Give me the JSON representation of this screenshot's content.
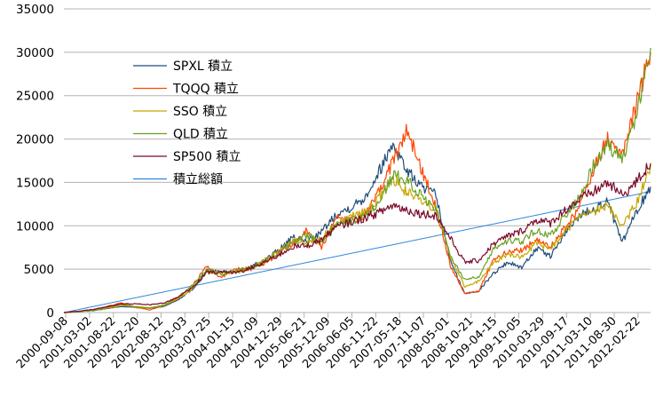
{
  "chart_data": {
    "type": "line",
    "title": "",
    "xlabel": "",
    "ylabel": "",
    "ylim": [
      0,
      35000
    ],
    "y_ticks": [
      "0",
      "5000",
      "10000",
      "15000",
      "20000",
      "25000",
      "30000",
      "35000"
    ],
    "x_tick_labels": [
      "2000-09-08",
      "2001-03-02",
      "2001-08-22",
      "2002-02-20",
      "2002-08-12",
      "2003-02-03",
      "2003-07-25",
      "2004-01-15",
      "2004-07-09",
      "2004-12-29",
      "2005-06-21",
      "2005-12-09",
      "2006-06-05",
      "2006-11-22",
      "2007-05-18",
      "2007-11-07",
      "2008-05-01",
      "2008-10-21",
      "2009-04-15",
      "2009-10-05",
      "2010-03-29",
      "2010-09-17",
      "2011-03-10",
      "2011-08-30",
      "2012-02-22"
    ],
    "grid": "horizontal",
    "legend": "inside-top-left",
    "series": [
      {
        "name": "SPXL 積立",
        "color": "#1f4e79",
        "values": [
          0,
          100,
          220,
          450,
          700,
          600,
          500,
          700,
          1500,
          2700,
          4800,
          4700,
          4600,
          5200,
          6000,
          7200,
          8600,
          8200,
          9300,
          11300,
          12100,
          13200,
          16200,
          19500,
          16300,
          14500,
          13500,
          6000,
          2200,
          2500,
          4500,
          5800,
          5200,
          7400,
          6500,
          9000,
          11200,
          12000,
          12800,
          8000,
          11600,
          14500
        ]
      },
      {
        "name": "TQQQ 積立",
        "color": "#ff4500",
        "values": [
          0,
          100,
          300,
          700,
          1100,
          600,
          300,
          800,
          1700,
          3200,
          5300,
          4000,
          5000,
          5000,
          5700,
          6800,
          7900,
          9500,
          7500,
          10900,
          10500,
          11000,
          13800,
          17500,
          21000,
          16500,
          12200,
          5500,
          2200,
          2500,
          6000,
          7000,
          7200,
          8400,
          7500,
          9700,
          12000,
          16500,
          20000,
          18000,
          24000,
          30000
        ]
      },
      {
        "name": "SSO 積立",
        "color": "#c8a600",
        "values": [
          0,
          100,
          250,
          500,
          800,
          700,
          550,
          800,
          1600,
          2800,
          4700,
          4600,
          4600,
          5200,
          6000,
          7000,
          8300,
          8100,
          8600,
          10300,
          11000,
          11700,
          13100,
          15500,
          13800,
          12700,
          12100,
          6500,
          3000,
          3600,
          5700,
          6700,
          6400,
          8000,
          7300,
          9300,
          10900,
          11600,
          12400,
          9800,
          12600,
          17000
        ]
      },
      {
        "name": "QLD 積立",
        "color": "#6aa121",
        "values": [
          0,
          100,
          280,
          600,
          950,
          650,
          500,
          900,
          1800,
          3100,
          5000,
          4400,
          4900,
          5100,
          5800,
          6900,
          8000,
          8900,
          8100,
          10100,
          10600,
          11000,
          12600,
          15800,
          15300,
          13500,
          12000,
          6500,
          3800,
          4200,
          7300,
          8300,
          8200,
          9500,
          8800,
          11100,
          13200,
          17000,
          19200,
          17800,
          22500,
          30500
        ]
      },
      {
        "name": "SP500 積立",
        "color": "#7b0a2a",
        "values": [
          0,
          150,
          350,
          650,
          1000,
          1000,
          900,
          1100,
          1800,
          2900,
          4600,
          4600,
          4600,
          5100,
          5800,
          6600,
          7600,
          7700,
          8400,
          9800,
          10400,
          10900,
          11500,
          12400,
          11800,
          11400,
          11200,
          8600,
          5800,
          6000,
          7900,
          8800,
          9400,
          10700,
          10300,
          11800,
          13000,
          13900,
          15000,
          13500,
          15000,
          17200
        ]
      },
      {
        "name": "積立総額",
        "color": "#2e86de",
        "values": [
          0,
          340,
          680,
          1020,
          1360,
          1700,
          2040,
          2380,
          2720,
          3060,
          3400,
          3740,
          4080,
          4420,
          4760,
          5100,
          5440,
          5780,
          6120,
          6460,
          6800,
          7140,
          7480,
          7820,
          8160,
          8500,
          8840,
          9180,
          9520,
          9860,
          10200,
          10540,
          10880,
          11220,
          11560,
          11900,
          12240,
          12580,
          12920,
          13260,
          13600,
          14000
        ]
      }
    ]
  }
}
